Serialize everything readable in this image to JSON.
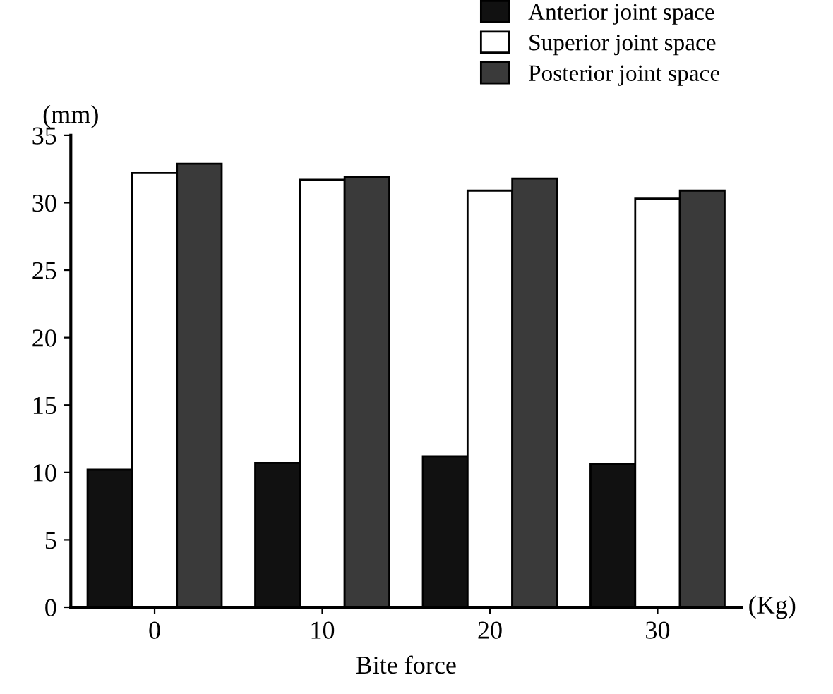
{
  "chart_data": {
    "type": "bar",
    "xlabel": "Bite force",
    "ylabel": "(mm)",
    "annotations": [
      "(Kg)"
    ],
    "categories": [
      "0",
      "10",
      "20",
      "30"
    ],
    "series": [
      {
        "name": "Anterior joint space",
        "color": "#111111",
        "values": [
          10.2,
          10.7,
          11.2,
          10.6
        ]
      },
      {
        "name": "Superior joint space",
        "color": "#ffffff",
        "values": [
          32.2,
          31.7,
          30.9,
          30.3
        ]
      },
      {
        "name": "Posterior joint space",
        "color": "#3a3a3a",
        "values": [
          32.9,
          31.9,
          31.8,
          30.9
        ]
      }
    ],
    "ylim": [
      0,
      35
    ],
    "yticks": [
      0,
      5,
      10,
      15,
      20,
      25,
      30,
      35
    ],
    "grid": false,
    "legend": "top right"
  }
}
